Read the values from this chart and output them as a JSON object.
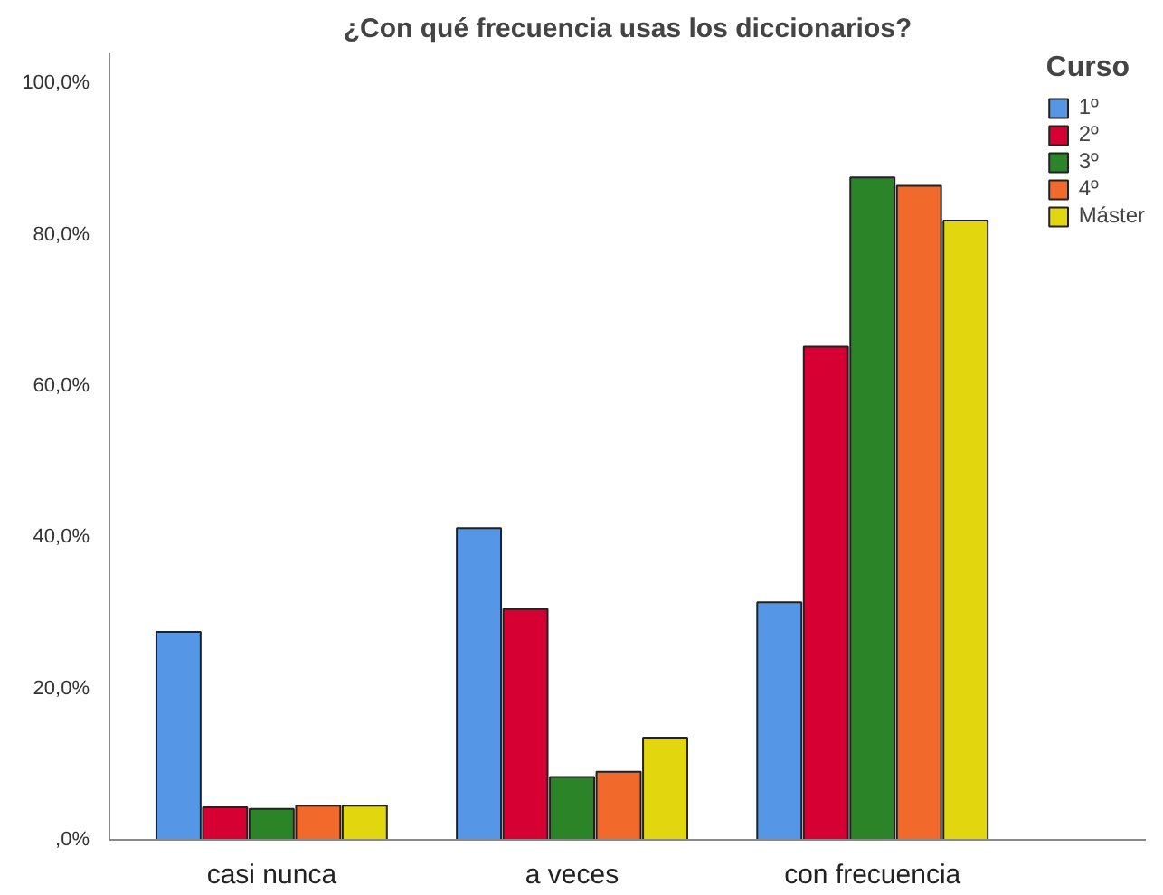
{
  "chart_data": {
    "type": "bar",
    "title": "¿Con qué frecuencia usas los diccionarios?",
    "legend_title": "Curso",
    "legend": "top right",
    "grid": false,
    "categories": [
      "casi nunca",
      "a veces",
      "con frecuencia"
    ],
    "ylim": [
      0,
      104
    ],
    "yticks": [
      {
        "value": 0,
        "label": ",0%"
      },
      {
        "value": 20,
        "label": "20,0%"
      },
      {
        "value": 40,
        "label": "40,0%"
      },
      {
        "value": 60,
        "label": "60,0%"
      },
      {
        "value": 80,
        "label": "80,0%"
      },
      {
        "value": 100,
        "label": "100,0%"
      }
    ],
    "series": [
      {
        "name": "1º",
        "color": "#5596e6",
        "values": [
          27.5,
          41.2,
          31.4
        ]
      },
      {
        "name": "2º",
        "color": "#d60032",
        "values": [
          4.3,
          30.5,
          65.2
        ]
      },
      {
        "name": "3º",
        "color": "#2b8528",
        "values": [
          4.1,
          8.3,
          87.6
        ]
      },
      {
        "name": "4º",
        "color": "#f1692b",
        "values": [
          4.5,
          9.0,
          86.5
        ]
      },
      {
        "name": "Máster",
        "color": "#e2d60e",
        "values": [
          4.5,
          13.5,
          81.9
        ]
      }
    ]
  }
}
